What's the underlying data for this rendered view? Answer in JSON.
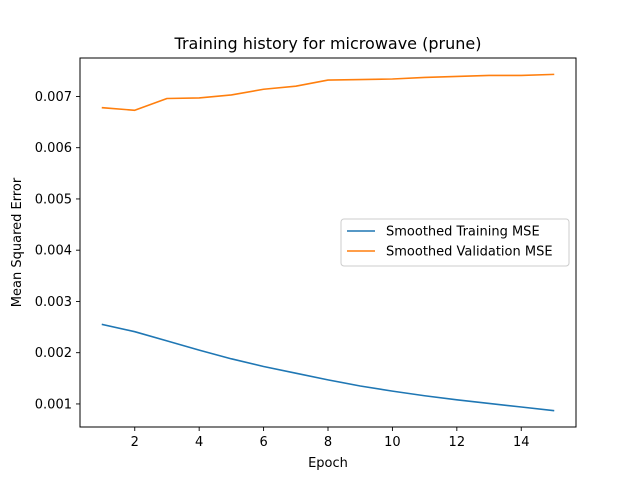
{
  "chart_data": {
    "type": "line",
    "title": "Training history for microwave (prune)",
    "xlabel": "Epoch",
    "ylabel": "Mean Squared Error",
    "xlim": [
      0.3,
      15.7
    ],
    "ylim": [
      0.00055,
      0.00775
    ],
    "xticks": [
      2,
      4,
      6,
      8,
      10,
      12,
      14
    ],
    "xtick_labels": [
      "2",
      "4",
      "6",
      "8",
      "10",
      "12",
      "14"
    ],
    "yticks": [
      0.001,
      0.002,
      0.003,
      0.004,
      0.005,
      0.006,
      0.007
    ],
    "ytick_labels": [
      "0.001",
      "0.002",
      "0.003",
      "0.004",
      "0.005",
      "0.006",
      "0.007"
    ],
    "grid": false,
    "legend_position": "center-right",
    "x": [
      1,
      2,
      3,
      4,
      5,
      6,
      7,
      8,
      9,
      10,
      11,
      12,
      13,
      14,
      15
    ],
    "series": [
      {
        "name": "Smoothed Training MSE",
        "color": "#1f77b4",
        "values": [
          0.00255,
          0.00241,
          0.00223,
          0.00205,
          0.00188,
          0.00173,
          0.0016,
          0.00147,
          0.00135,
          0.00125,
          0.00116,
          0.00108,
          0.00101,
          0.00094,
          0.00087
        ]
      },
      {
        "name": "Smoothed Validation MSE",
        "color": "#ff7f0e",
        "values": [
          0.00678,
          0.00673,
          0.00696,
          0.00697,
          0.00703,
          0.00714,
          0.0072,
          0.00732,
          0.00733,
          0.00734,
          0.00737,
          0.00739,
          0.00741,
          0.00741,
          0.00743
        ]
      }
    ]
  }
}
